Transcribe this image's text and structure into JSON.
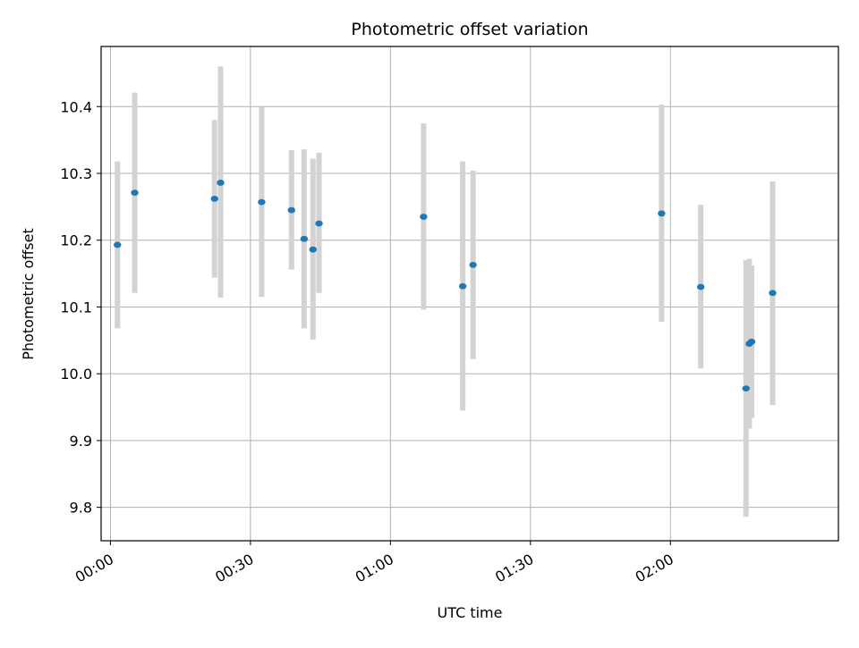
{
  "chart_data": {
    "type": "scatter",
    "title": "Photometric offset variation",
    "xlabel": "UTC time",
    "ylabel": "Photometric offset",
    "xlim": [
      "23:58",
      "02:36"
    ],
    "ylim": [
      9.75,
      10.49
    ],
    "x_ticks": [
      "00:00",
      "00:30",
      "01:00",
      "01:30",
      "02:00"
    ],
    "y_ticks": [
      "9.8",
      "9.9",
      "10.0",
      "10.1",
      "10.2",
      "10.3",
      "10.4"
    ],
    "grid": true,
    "colors": {
      "point": "#1f77b4",
      "error_bar": "#d3d3d3",
      "grid": "#b0b0b0"
    },
    "points": [
      {
        "x": "00:01:30",
        "y": 10.193,
        "ylow": 10.068,
        "yhigh": 10.318
      },
      {
        "x": "00:05:12",
        "y": 10.271,
        "ylow": 10.121,
        "yhigh": 10.421
      },
      {
        "x": "00:22:18",
        "y": 10.262,
        "ylow": 10.144,
        "yhigh": 10.38
      },
      {
        "x": "00:23:36",
        "y": 10.286,
        "ylow": 10.114,
        "yhigh": 10.46
      },
      {
        "x": "00:32:24",
        "y": 10.257,
        "ylow": 10.115,
        "yhigh": 10.399
      },
      {
        "x": "00:38:48",
        "y": 10.245,
        "ylow": 10.156,
        "yhigh": 10.335
      },
      {
        "x": "00:41:30",
        "y": 10.202,
        "ylow": 10.068,
        "yhigh": 10.336
      },
      {
        "x": "00:43:24",
        "y": 10.186,
        "ylow": 10.051,
        "yhigh": 10.322
      },
      {
        "x": "00:44:42",
        "y": 10.225,
        "ylow": 10.121,
        "yhigh": 10.331
      },
      {
        "x": "01:07:06",
        "y": 10.235,
        "ylow": 10.096,
        "yhigh": 10.375
      },
      {
        "x": "01:15:30",
        "y": 10.131,
        "ylow": 9.945,
        "yhigh": 10.318
      },
      {
        "x": "01:17:42",
        "y": 10.163,
        "ylow": 10.022,
        "yhigh": 10.304
      },
      {
        "x": "01:58:06",
        "y": 10.24,
        "ylow": 10.078,
        "yhigh": 10.403
      },
      {
        "x": "02:06:30",
        "y": 10.13,
        "ylow": 10.008,
        "yhigh": 10.253
      },
      {
        "x": "02:16:12",
        "y": 9.978,
        "ylow": 9.786,
        "yhigh": 10.17
      },
      {
        "x": "02:16:54",
        "y": 10.045,
        "ylow": 9.918,
        "yhigh": 10.172
      },
      {
        "x": "02:17:24",
        "y": 10.048,
        "ylow": 9.934,
        "yhigh": 10.162
      },
      {
        "x": "02:21:54",
        "y": 10.121,
        "ylow": 9.953,
        "yhigh": 10.288
      }
    ]
  }
}
